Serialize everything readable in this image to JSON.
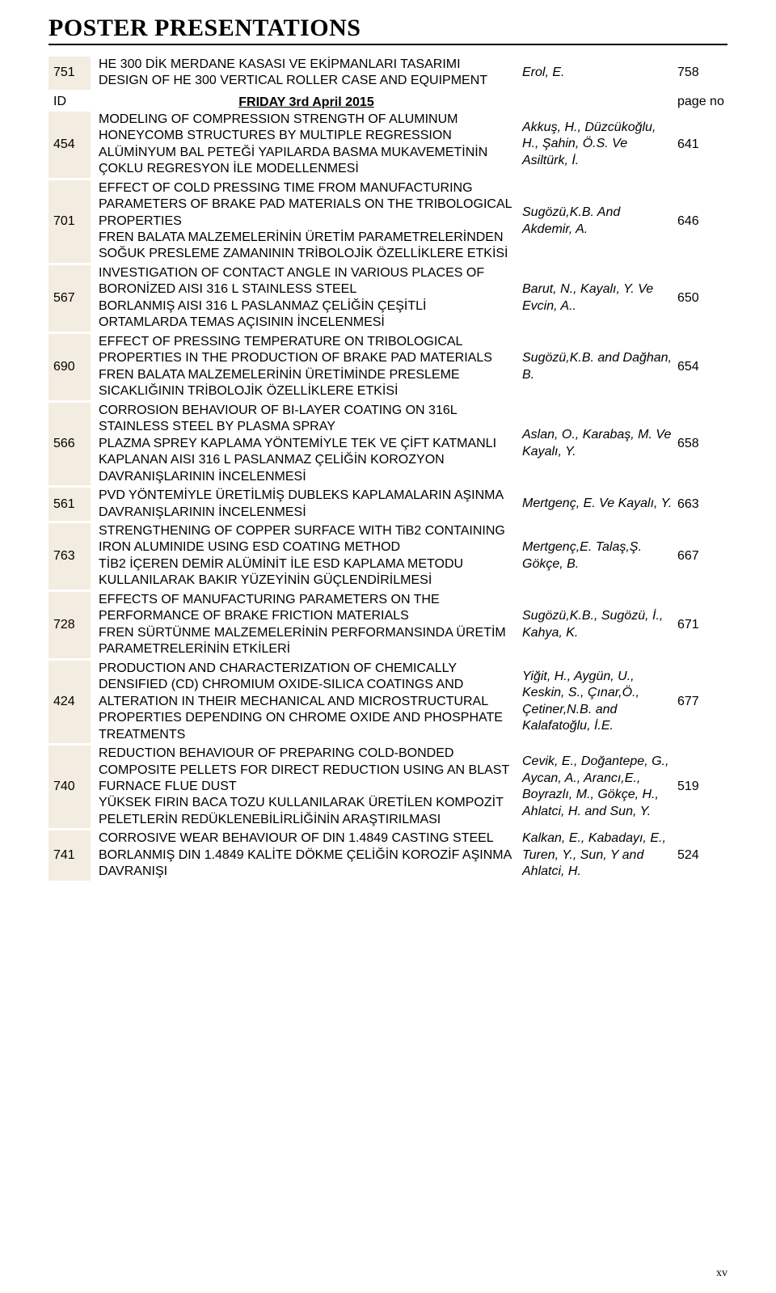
{
  "heading": "POSTER PRESENTATIONS",
  "section_title": "FRIDAY 3rd April 2015",
  "header_id_label": "ID",
  "header_pageno_label": "page no",
  "footer": "xv",
  "top_row": {
    "id": "751",
    "desc": "HE 300 DİK MERDANE KASASI VE EKİPMANLARI TASARIMI\nDESIGN OF HE 300 VERTICAL ROLLER CASE AND EQUIPMENT",
    "authors": "Erol, E.",
    "page": "758"
  },
  "rows": [
    {
      "id": "454",
      "desc": "MODELING OF COMPRESSION STRENGTH OF ALUMINUM HONEYCOMB STRUCTURES BY MULTIPLE REGRESSION\nALÜMİNYUM BAL PETEĞİ YAPILARDA BASMA MUKAVEMETİNİN ÇOKLU REGRESYON İLE MODELLENMESİ",
      "authors": "Akkuş, H., Düzcükoğlu, H., Şahin, Ö.S. Ve Asiltürk, İ.",
      "page": "641"
    },
    {
      "id": "701",
      "desc": "EFFECT OF COLD PRESSING TIME FROM MANUFACTURING PARAMETERS OF BRAKE PAD MATERIALS ON THE TRIBOLOGICAL PROPERTIES\nFREN BALATA MALZEMELERİNİN ÜRETİM PARAMETRELERİNDEN SOĞUK PRESLEME ZAMANININ TRİBOLOJİK ÖZELLİKLERE ETKİSİ",
      "authors": "Sugözü,K.B. And Akdemir, A.",
      "page": "646"
    },
    {
      "id": "567",
      "desc": "INVESTIGATION OF CONTACT ANGLE IN VARIOUS PLACES OF BORONİZED AISI 316 L STAINLESS STEEL\nBORLANMIŞ AISI 316 L PASLANMAZ ÇELİĞİN ÇEŞİTLİ ORTAMLARDA TEMAS AÇISININ İNCELENMESİ",
      "authors": "Barut, N., Kayalı, Y. Ve Evcin, A..",
      "page": "650"
    },
    {
      "id": "690",
      "desc": "EFFECT OF PRESSING TEMPERATURE ON TRIBOLOGICAL PROPERTIES IN THE PRODUCTION OF BRAKE PAD MATERIALS\nFREN BALATA MALZEMELERİNİN ÜRETİMİNDE PRESLEME SICAKLIĞININ TRİBOLOJİK ÖZELLİKLERE ETKİSİ",
      "authors": "Sugözü,K.B. and Dağhan, B.",
      "page": "654"
    },
    {
      "id": "566",
      "desc": "CORROSION BEHAVIOUR OF BI-LAYER COATING ON 316L STAINLESS STEEL BY PLASMA SPRAY\nPLAZMA SPREY KAPLAMA YÖNTEMİYLE TEK VE ÇİFT KATMANLI KAPLANAN AISI 316 L PASLANMAZ ÇELİĞİN KOROZYON DAVRANIŞLARININ İNCELENMESİ",
      "authors": "Aslan, O., Karabaş, M. Ve Kayalı, Y.",
      "page": "658"
    },
    {
      "id": "561",
      "desc": "PVD YÖNTEMİYLE ÜRETİLMİŞ DUBLEKS KAPLAMALARIN AŞINMA DAVRANIŞLARININ İNCELENMESİ",
      "authors": "Mertgenç, E. Ve Kayalı, Y.",
      "page": "663"
    },
    {
      "id": "763",
      "desc": "STRENGTHENING OF COPPER SURFACE WITH TiB2 CONTAINING IRON ALUMINIDE USING ESD COATING METHOD\nTİB2 İÇEREN DEMİR ALÜMİNİT İLE ESD KAPLAMA METODU KULLANILARAK BAKIR YÜZEYİNİN GÜÇLENDİRİLMESİ",
      "authors": "Mertgenç,E. Talaş,Ş. Gökçe, B.",
      "page": "667"
    },
    {
      "id": "728",
      "desc": "EFFECTS OF MANUFACTURING PARAMETERS ON THE PERFORMANCE OF BRAKE FRICTION MATERIALS\nFREN SÜRTÜNME MALZEMELERİNİN PERFORMANSINDA ÜRETİM PARAMETRELERİNİN ETKİLERİ",
      "authors": "Sugözü,K.B., Sugözü, İ., Kahya, K.",
      "page": "671"
    },
    {
      "id": "424",
      "desc": "PRODUCTION AND CHARACTERIZATION OF CHEMICALLY DENSIFIED (CD) CHROMIUM OXIDE-SILICA COATINGS AND ALTERATION IN THEIR MECHANICAL AND MICROSTRUCTURAL  PROPERTIES DEPENDING ON CHROME OXIDE AND PHOSPHATE TREATMENTS",
      "authors": "Yiğit, H., Aygün, U., Keskin, S., Çınar,Ö., Çetiner,N.B. and Kalafatoğlu, İ.E.",
      "page": "677"
    },
    {
      "id": "740",
      "desc": "REDUCTION BEHAVIOUR OF PREPARING COLD-BONDED COMPOSITE PELLETS FOR DIRECT REDUCTION USING AN BLAST FURNACE FLUE DUST\nYÜKSEK FIRIN BACA TOZU KULLANILARAK ÜRETİLEN KOMPOZİT PELETLERİN REDÜKLENEBİLİRLİĞİNİN ARAŞTIRILMASI",
      "authors": "Cevik, E., Doğantepe, G., Aycan, A., Arancı,E., Boyrazlı, M., Gökçe, H., Ahlatci, H. and Sun, Y.",
      "page": "519"
    },
    {
      "id": "741",
      "desc": "CORROSIVE WEAR BEHAVIOUR OF DIN 1.4849 CASTING STEEL\nBORLANMIŞ DIN 1.4849 KALİTE DÖKME ÇELİĞİN KOROZİF AŞINMA DAVRANIŞI",
      "authors": "Kalkan, E., Kabadayı, E., Turen, Y., Sun, Y and Ahlatci, H.",
      "page": "524"
    }
  ]
}
